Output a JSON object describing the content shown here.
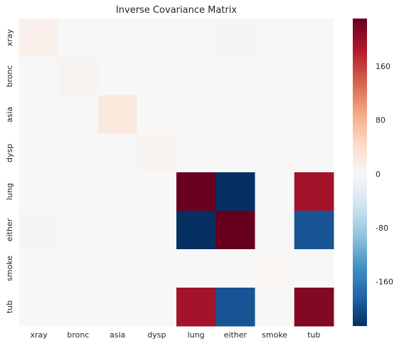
{
  "chart_data": {
    "type": "heatmap",
    "title": "Inverse Covariance Matrix",
    "row_labels": [
      "xray",
      "bronc",
      "asia",
      "dysp",
      "lung",
      "either",
      "smoke",
      "tub"
    ],
    "col_labels": [
      "xray",
      "bronc",
      "asia",
      "dysp",
      "lung",
      "either",
      "smoke",
      "tub"
    ],
    "values": [
      [
        12,
        0,
        0,
        0,
        0,
        -5,
        0,
        0
      ],
      [
        0,
        6,
        0,
        0,
        0,
        0,
        0,
        0
      ],
      [
        0,
        0,
        25,
        0,
        0,
        -1,
        0,
        0
      ],
      [
        0,
        0,
        0,
        5,
        0,
        0,
        0,
        0
      ],
      [
        0,
        0,
        0,
        0,
        230,
        -225,
        0,
        195
      ],
      [
        -5,
        0,
        -1,
        -1,
        -225,
        232,
        0,
        -195
      ],
      [
        0,
        0,
        0,
        0,
        0,
        0,
        4,
        0
      ],
      [
        0,
        0,
        0,
        0,
        195,
        -195,
        0,
        215
      ]
    ],
    "colorbar": {
      "range": [
        -225,
        232
      ],
      "ticks": [
        -160,
        -80,
        0,
        80,
        160
      ],
      "colormap": "RdBu_r"
    },
    "colors": {
      "neutral": "#f7f7f7",
      "negative_extreme": "#053061",
      "positive_extreme": "#67001f"
    }
  }
}
